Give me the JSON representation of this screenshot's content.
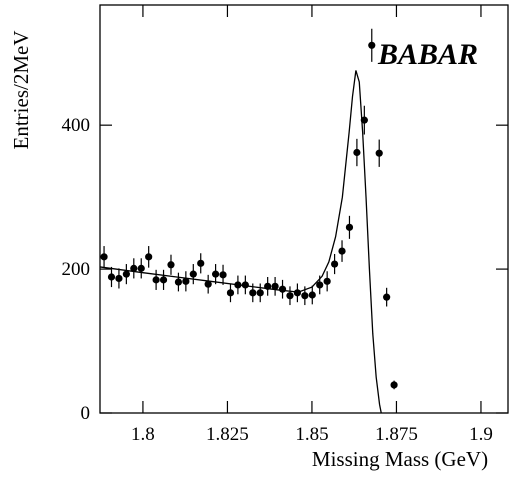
{
  "chart_data": {
    "type": "scatter",
    "logo": "BABAR",
    "xlabel": "Missing Mass (GeV)",
    "ylabel": "Entries/2MeV",
    "xlim": [
      1.7873,
      1.908
    ],
    "ylim": [
      0,
      567
    ],
    "xticks": [
      1.8,
      1.825,
      1.85,
      1.875,
      1.9
    ],
    "yticks": [
      0,
      200,
      400
    ],
    "color": "#000000",
    "x": [
      1.7885,
      1.7907,
      1.7929,
      1.7951,
      1.7973,
      1.7995,
      1.8017,
      1.8039,
      1.8061,
      1.8083,
      1.8105,
      1.8127,
      1.8149,
      1.8171,
      1.8193,
      1.8215,
      1.8237,
      1.8259,
      1.8281,
      1.8303,
      1.8325,
      1.8347,
      1.8369,
      1.8391,
      1.8413,
      1.8435,
      1.8457,
      1.8479,
      1.8501,
      1.8523,
      1.8545,
      1.8567,
      1.8589,
      1.8611,
      1.8633,
      1.8655,
      1.8677,
      1.8699,
      1.8721,
      1.8743
    ],
    "values": [
      217,
      189,
      187,
      193,
      201,
      201,
      217,
      185,
      185,
      206,
      182,
      183,
      193,
      208,
      179,
      193,
      192,
      167,
      178,
      178,
      167,
      167,
      176,
      176,
      172,
      163,
      167,
      163,
      164,
      178,
      183,
      207,
      225,
      258,
      362,
      407,
      511,
      361,
      161,
      39
    ],
    "errors": [
      15,
      14,
      14,
      14,
      14,
      14,
      15,
      14,
      14,
      14,
      13,
      14,
      14,
      14,
      13,
      14,
      14,
      13,
      13,
      13,
      13,
      13,
      13,
      13,
      13,
      13,
      13,
      13,
      13,
      13,
      14,
      14,
      15,
      16,
      19,
      20,
      23,
      19,
      13,
      6
    ],
    "fit": {
      "x": [
        1.7873,
        1.8,
        1.81,
        1.82,
        1.83,
        1.84,
        1.846,
        1.85,
        1.853,
        1.855,
        1.857,
        1.859,
        1.861,
        1.862,
        1.863,
        1.864,
        1.865,
        1.866,
        1.867,
        1.868,
        1.869,
        1.87,
        1.8705
      ],
      "values": [
        203,
        195,
        189,
        183,
        177,
        171,
        168,
        175,
        190,
        210,
        245,
        300,
        390,
        440,
        476,
        460,
        390,
        300,
        200,
        110,
        50,
        12,
        0
      ]
    }
  }
}
